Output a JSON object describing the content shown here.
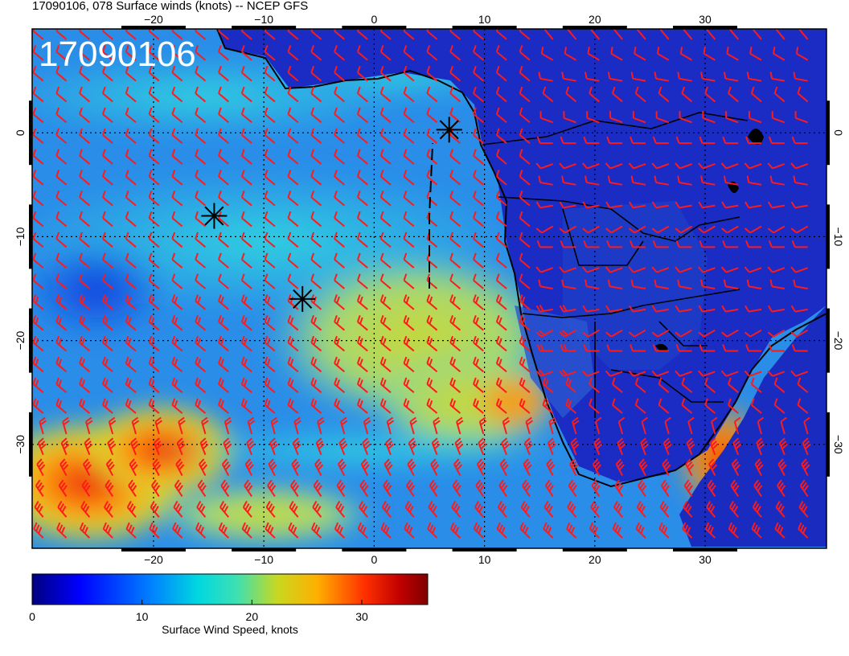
{
  "title": "17090106, 078 Surface winds (knots) -- NCEP GFS",
  "stamp": "17090106",
  "colors": {
    "barb": "#ff1a1a",
    "coast": "#000000",
    "grid": "#000000"
  },
  "map_data": {
    "projection": "equirectangular",
    "lon_range": [
      -31,
      41
    ],
    "lat_range": [
      -40,
      10
    ],
    "grid_lines": true,
    "lon_ticks": [
      {
        "value": -20,
        "label": "−20"
      },
      {
        "value": -10,
        "label": "−10"
      },
      {
        "value": 0,
        "label": "0"
      },
      {
        "value": 10,
        "label": "10"
      },
      {
        "value": 20,
        "label": "20"
      },
      {
        "value": 30,
        "label": "30"
      }
    ],
    "lat_ticks": [
      {
        "value": 0,
        "label": "0"
      },
      {
        "value": -10,
        "label": "−10"
      },
      {
        "value": -20,
        "label": "−20"
      },
      {
        "value": -30,
        "label": "−30"
      }
    ],
    "markers": [
      {
        "name": "marker-1",
        "lon": -14.5,
        "lat": -8
      },
      {
        "name": "marker-2",
        "lon": -6.5,
        "lat": -16
      },
      {
        "name": "marker-3",
        "lon": 6.8,
        "lat": 0.3
      }
    ],
    "track": [
      [
        5,
        -15
      ],
      [
        5,
        -8
      ],
      [
        5.3,
        -1
      ]
    ],
    "wind_barbs": "grid of red barbs, ~2.1 deg spacing"
  },
  "colorbar": {
    "label": "Surface Wind Speed, knots",
    "min": 0,
    "max": 36,
    "ticks": [
      {
        "value": 0,
        "label": "0"
      },
      {
        "value": 10,
        "label": "10"
      },
      {
        "value": 20,
        "label": "20"
      },
      {
        "value": 30,
        "label": "30"
      }
    ]
  }
}
